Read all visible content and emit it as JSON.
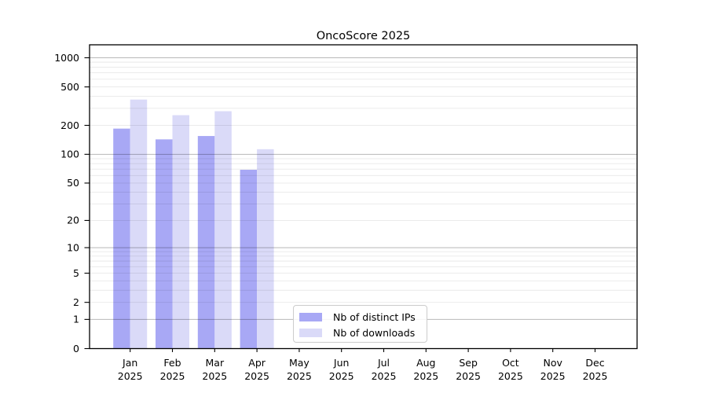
{
  "chart_data": {
    "type": "bar",
    "title": "OncoScore 2025",
    "months": [
      "Jan",
      "Feb",
      "Mar",
      "Apr",
      "May",
      "Jun",
      "Jul",
      "Aug",
      "Sep",
      "Oct",
      "Nov",
      "Dec"
    ],
    "year": "2025",
    "categories": [
      "Jan 2025",
      "Feb 2025",
      "Mar 2025",
      "Apr 2025",
      "May 2025",
      "Jun 2025",
      "Jul 2025",
      "Aug 2025",
      "Sep 2025",
      "Oct 2025",
      "Nov 2025",
      "Dec 2025"
    ],
    "series": [
      {
        "name": "Nb of distinct IPs",
        "color": "#a8a8f5",
        "values": [
          185,
          143,
          155,
          69,
          null,
          null,
          null,
          null,
          null,
          null,
          null,
          null
        ]
      },
      {
        "name": "Nb of downloads",
        "color": "#dadaf8",
        "values": [
          370,
          255,
          280,
          113,
          null,
          null,
          null,
          null,
          null,
          null,
          null,
          null
        ]
      }
    ],
    "y_ticks": [
      0,
      1,
      2,
      5,
      10,
      20,
      50,
      100,
      200,
      500,
      1000
    ],
    "y_scale": "log1p",
    "ylim": [
      0,
      1350
    ],
    "xlabel": "",
    "ylabel": "",
    "grid": true,
    "legend_position": "lower center"
  },
  "colors": {
    "distinct_ips": "#a8a8f5",
    "downloads": "#dadaf8",
    "grid_minor": "rgba(0,0,0,0.09)",
    "grid_major": "rgba(0,0,0,0.28)",
    "spine": "#000000"
  }
}
